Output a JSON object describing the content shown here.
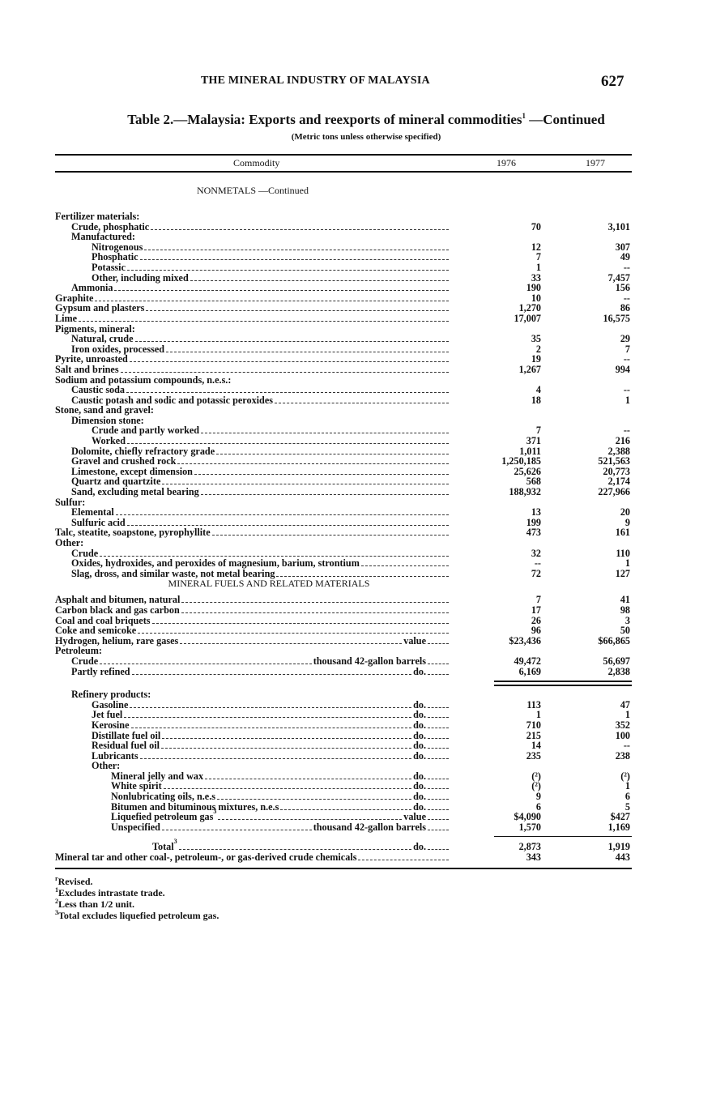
{
  "running_head": "THE MINERAL INDUSTRY OF MALAYSIA",
  "page_number": "627",
  "table": {
    "title": "Table 2.—Malaysia: Exports and reexports of mineral commodities",
    "title_note": "1",
    "title_suffix": " —Continued",
    "subtitle": "(Metric tons unless otherwise specified)",
    "columns": [
      "Commodity",
      "1976",
      "1977"
    ],
    "rows": [
      {
        "type": "section",
        "label": "NONMETALS —Continued"
      },
      {
        "type": "gap"
      },
      {
        "level": 0,
        "label": "Fertilizer materials:"
      },
      {
        "level": 1,
        "label": "Crude, phosphatic",
        "v1976": "70",
        "v1977": "3,101"
      },
      {
        "level": 1,
        "label": "Manufactured:"
      },
      {
        "level": 2,
        "label": "Nitrogenous",
        "v1976": "12",
        "v1977": "307"
      },
      {
        "level": 2,
        "label": "Phosphatic",
        "v1976": "7",
        "v1977": "49"
      },
      {
        "level": 2,
        "label": "Potassic",
        "v1976": "1",
        "v1977": "--"
      },
      {
        "level": 2,
        "label": "Other, including mixed",
        "v1976": "33",
        "v1977": "7,457"
      },
      {
        "level": 1,
        "label": "Ammonia",
        "v1976": "190",
        "v1977": "156"
      },
      {
        "level": 0,
        "label": "Graphite",
        "v1976": "10",
        "v1977": "--"
      },
      {
        "level": 0,
        "label": "Gypsum and plasters",
        "v1976": "1,270",
        "v1977": "86"
      },
      {
        "level": 0,
        "label": "Lime",
        "v1976": "17,007",
        "v1977": "16,575"
      },
      {
        "level": 0,
        "label": "Pigments, mineral:"
      },
      {
        "level": 1,
        "label": "Natural, crude",
        "v1976": "35",
        "v1977": "29"
      },
      {
        "level": 1,
        "label": "Iron oxides, processed",
        "v1976": "2",
        "v1977": "7"
      },
      {
        "level": 0,
        "label": "Pyrite, unroasted",
        "v1976": "19",
        "v1977": "--"
      },
      {
        "level": 0,
        "label": "Salt and brines",
        "v1976": "1,267",
        "v1977": "994"
      },
      {
        "level": 0,
        "label": "Sodium and potassium compounds, n.e.s.:"
      },
      {
        "level": 1,
        "label": "Caustic soda",
        "v1976": "4",
        "v1977": "--"
      },
      {
        "level": 1,
        "label": "Caustic potash and sodic and potassic peroxides",
        "v1976": "18",
        "v1977": "1"
      },
      {
        "level": 0,
        "label": "Stone, sand and gravel:"
      },
      {
        "level": 1,
        "label": "Dimension stone:"
      },
      {
        "level": 2,
        "label": "Crude and partly worked",
        "v1976": "7",
        "v1977": "--"
      },
      {
        "level": 2,
        "label": "Worked",
        "v1976": "371",
        "v1977": "216"
      },
      {
        "level": 1,
        "label": "Dolomite, chiefly refractory grade",
        "v1976": "1,011",
        "v1977": "2,388"
      },
      {
        "level": 1,
        "label": "Gravel and crushed rock",
        "v1976": "1,250,185",
        "v1977": "521,563"
      },
      {
        "level": 1,
        "label": "Limestone, except dimension",
        "v1976": "25,626",
        "v1977": "20,773"
      },
      {
        "level": 1,
        "label": "Quartz and quartzite",
        "v1976": "568",
        "v1977": "2,174"
      },
      {
        "level": 1,
        "label": "Sand, excluding metal bearing",
        "v1976": "188,932",
        "v1977": "227,966"
      },
      {
        "level": 0,
        "label": "Sulfur:"
      },
      {
        "level": 1,
        "label": "Elemental",
        "v1976": "13",
        "v1977": "20"
      },
      {
        "level": 1,
        "label": "Sulfuric acid",
        "v1976": "199",
        "v1977": "9"
      },
      {
        "level": 0,
        "label": "Talc, steatite, soapstone, pyrophyllite",
        "v1976": "473",
        "v1977": "161"
      },
      {
        "level": 0,
        "label": "Other:"
      },
      {
        "level": 1,
        "label": "Crude",
        "v1976": "32",
        "v1977": "110"
      },
      {
        "level": 1,
        "label": "Oxides, hydroxides, and peroxides of magnesium, barium, strontium",
        "v1976": "--",
        "v1977": "1"
      },
      {
        "level": 1,
        "label": "Slag, dross, and similar waste, not metal bearing",
        "v1976": "72",
        "v1977": "127"
      },
      {
        "type": "section",
        "label": "MINERAL FUELS AND RELATED MATERIALS"
      },
      {
        "type": "halfgap"
      },
      {
        "level": 0,
        "label": "Asphalt and bitumen, natural",
        "v1976": "7",
        "v1977": "41"
      },
      {
        "level": 0,
        "label": "Carbon black and gas carbon",
        "v1976": "17",
        "v1977": "98"
      },
      {
        "level": 0,
        "label": "Coal and coal briquets",
        "v1976": "26",
        "v1977": "3"
      },
      {
        "level": 0,
        "label": "Coke and semicoke",
        "v1976": "96",
        "v1977": "50"
      },
      {
        "level": 0,
        "label": "Hydrogen, helium, rare gases",
        "unit": "value",
        "v1976": "$23,436",
        "v1977": "$66,865"
      },
      {
        "level": 0,
        "label": "Petroleum:"
      },
      {
        "level": 1,
        "label": "Crude",
        "unit": "thousand 42-gallon barrels",
        "v1976": "49,472",
        "v1977": "56,697"
      },
      {
        "level": 1,
        "label": "Partly refined",
        "unit": "do.",
        "v1976": "6,169",
        "v1977": "2,838"
      },
      {
        "type": "doublerule"
      },
      {
        "level": 1,
        "label": "Refinery products:"
      },
      {
        "level": 2,
        "label": "Gasoline",
        "unit": "do.",
        "v1976": "113",
        "v1977": "47"
      },
      {
        "level": 2,
        "label": "Jet fuel",
        "unit": "do.",
        "v1976": "1",
        "v1977": "1"
      },
      {
        "level": 2,
        "label": "Kerosine",
        "unit": "do.",
        "v1976": "710",
        "v1977": "352"
      },
      {
        "level": 2,
        "label": "Distillate fuel oil",
        "unit": "do.",
        "v1976": "215",
        "v1977": "100"
      },
      {
        "level": 2,
        "label": "Residual fuel oil",
        "unit": "do.",
        "v1976": "14",
        "v1977": "--"
      },
      {
        "level": 2,
        "label": "Lubricants",
        "unit": "do.",
        "v1976": "235",
        "v1977": "238"
      },
      {
        "level": 2,
        "label": "Other:"
      },
      {
        "level": 3,
        "label": "Mineral jelly and wax",
        "unit": "do.",
        "v1976": "(²)",
        "v1977": "(²)"
      },
      {
        "level": 3,
        "label": "White spirit",
        "unit": "do.",
        "v1976": "(²)",
        "v1977": "1"
      },
      {
        "level": 3,
        "label": "Nonlubricating oils, n.e.s",
        "unit": "do.",
        "v1976": "9",
        "v1977": "6"
      },
      {
        "level": 3,
        "label": "Bitumen and bituminous mixtures, n.e.s",
        "unit": "do.",
        "v1976": "6",
        "v1977": "5"
      },
      {
        "level": 3,
        "label": "Liquefied petroleum gas",
        "note": "3",
        "unit": "value",
        "v1976": "$4,090",
        "v1977": "$427"
      },
      {
        "level": 3,
        "label": "Unspecified",
        "unit": "thousand 42-gallon barrels",
        "v1976": "1,570",
        "v1977": "1,169"
      },
      {
        "type": "totalrule"
      },
      {
        "level": 4,
        "label": "Total",
        "note": "3",
        "unit": "do.",
        "v1976": "2,873",
        "v1977": "1,919"
      },
      {
        "level": 0,
        "label": "Mineral tar and other coal-, petroleum-, or gas-derived crude chemicals",
        "v1976": "343",
        "v1977": "443"
      }
    ],
    "footnotes": [
      {
        "mark": "r",
        "text": "Revised."
      },
      {
        "mark": "1",
        "text": "Excludes intrastate trade."
      },
      {
        "mark": "2",
        "text": "Less than 1/2 unit."
      },
      {
        "mark": "3",
        "text": "Total excludes liquefied petroleum gas."
      }
    ]
  }
}
